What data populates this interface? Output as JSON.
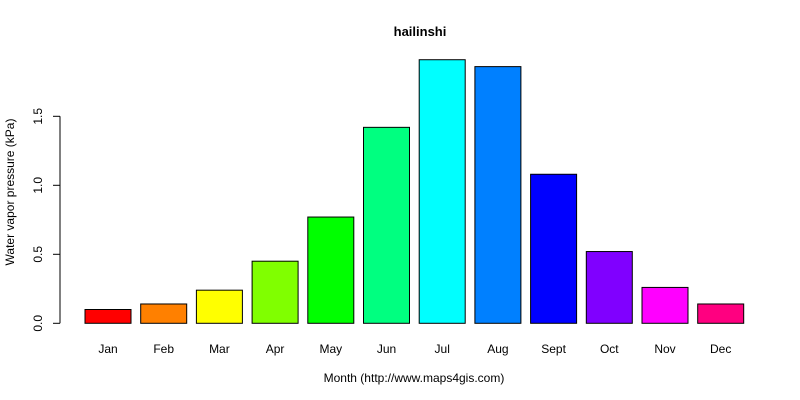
{
  "chart_data": {
    "type": "bar",
    "title": "hailinshi",
    "xlabel": "Month (http://www.maps4gis.com)",
    "ylabel": "Water vapor pressure (kPa)",
    "categories": [
      "Jan",
      "Feb",
      "Mar",
      "Apr",
      "May",
      "Jun",
      "Jul",
      "Aug",
      "Sept",
      "Oct",
      "Nov",
      "Dec"
    ],
    "values": [
      0.1,
      0.14,
      0.24,
      0.45,
      0.77,
      1.42,
      1.91,
      1.86,
      1.08,
      0.52,
      0.26,
      0.14
    ],
    "colors": [
      "#FF0000",
      "#FF8000",
      "#FFFF00",
      "#80FF00",
      "#00FF00",
      "#00FF80",
      "#00FFFF",
      "#0080FF",
      "#0000FF",
      "#8000FF",
      "#FF00FF",
      "#FF0080"
    ],
    "yticks": [
      0.0,
      0.5,
      1.0,
      1.5
    ],
    "ytick_labels": [
      "0.0",
      "0.5",
      "1.0",
      "1.5"
    ],
    "ylim": [
      0,
      1.91
    ],
    "grid": false,
    "legend": "none"
  }
}
